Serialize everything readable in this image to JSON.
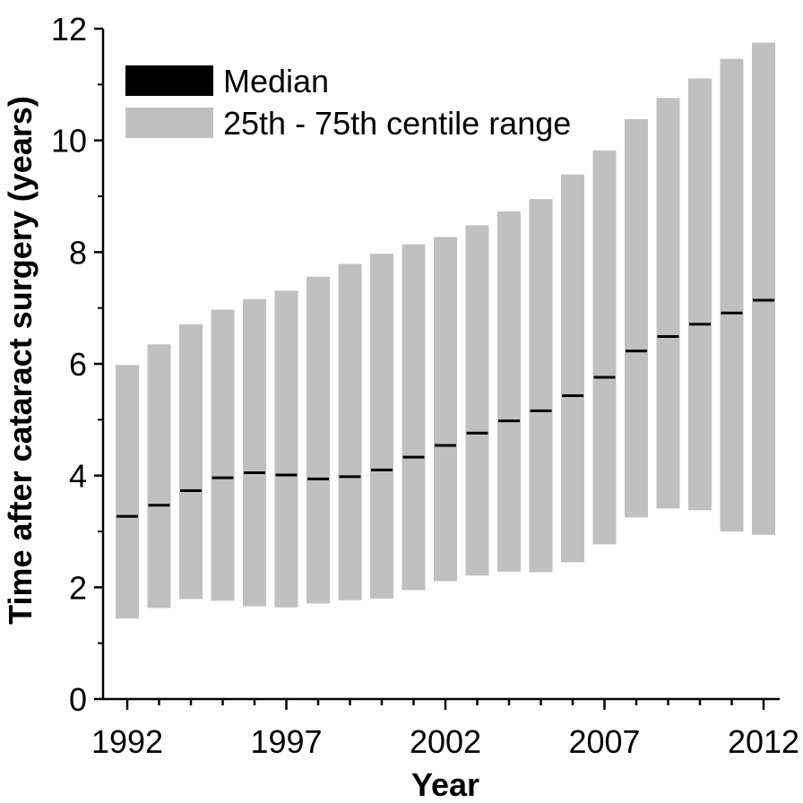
{
  "chart_data": {
    "type": "bar",
    "subtype": "floating-range-with-median",
    "title": "",
    "xlabel": "Year",
    "ylabel": "Time after cataract surgery (years)",
    "ylim": [
      0,
      12
    ],
    "yticks": [
      0,
      2,
      4,
      6,
      8,
      10,
      12
    ],
    "yticks_labels": [
      "0",
      "2",
      "4",
      "6",
      "8",
      "10",
      "12"
    ],
    "xlim": [
      1991,
      2012.8
    ],
    "xticks_major": [
      1992,
      1997,
      2002,
      2007,
      2012
    ],
    "xticks_labels": [
      "1992",
      "1997",
      "2002",
      "2007",
      "2012"
    ],
    "grid": false,
    "legend_position": "top-left",
    "colors": {
      "range": "#c0c0c0",
      "median": "#000000",
      "axis": "#000000"
    },
    "series": [
      {
        "name": "Median",
        "values": [
          3.27,
          3.47,
          3.73,
          3.96,
          4.05,
          4.01,
          3.94,
          3.98,
          4.1,
          4.33,
          4.54,
          4.76,
          4.98,
          5.16,
          5.43,
          5.76,
          6.23,
          6.49,
          6.71,
          6.91,
          7.14
        ]
      },
      {
        "name": "25th - 75th centile range",
        "low": [
          1.44,
          1.63,
          1.79,
          1.76,
          1.66,
          1.64,
          1.71,
          1.77,
          1.8,
          1.95,
          2.11,
          2.21,
          2.28,
          2.27,
          2.45,
          2.77,
          3.25,
          3.41,
          3.38,
          3.0,
          2.94
        ],
        "high": [
          5.98,
          6.35,
          6.71,
          6.97,
          7.16,
          7.31,
          7.56,
          7.79,
          7.97,
          8.14,
          8.27,
          8.48,
          8.73,
          8.95,
          9.39,
          9.82,
          10.38,
          10.76,
          11.11,
          11.46,
          11.75
        ]
      }
    ],
    "x": [
      1992,
      1993,
      1994,
      1995,
      1996,
      1997,
      1998,
      1999,
      2000,
      2001,
      2002,
      2003,
      2004,
      2005,
      2006,
      2007,
      2008,
      2009,
      2010,
      2011,
      2012
    ]
  }
}
